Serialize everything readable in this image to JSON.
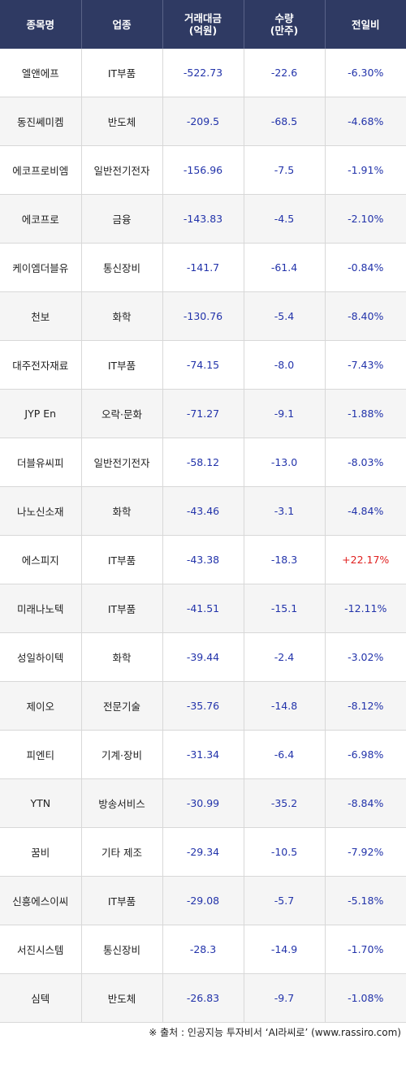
{
  "header": {
    "name": "종목명",
    "sector": "업종",
    "amount_l1": "거래대금",
    "amount_l2": "(억원)",
    "volume_l1": "수량",
    "volume_l2": "(만주)",
    "change": "전일비"
  },
  "rows": [
    {
      "name": "엘앤에프",
      "sector": "IT부품",
      "amount": "-522.73",
      "volume": "-22.6",
      "change": "-6.30%"
    },
    {
      "name": "동진쎄미켐",
      "sector": "반도체",
      "amount": "-209.5",
      "volume": "-68.5",
      "change": "-4.68%"
    },
    {
      "name": "에코프로비엠",
      "sector": "일반전기전자",
      "amount": "-156.96",
      "volume": "-7.5",
      "change": "-1.91%"
    },
    {
      "name": "에코프로",
      "sector": "금융",
      "amount": "-143.83",
      "volume": "-4.5",
      "change": "-2.10%"
    },
    {
      "name": "케이엠더블유",
      "sector": "통신장비",
      "amount": "-141.7",
      "volume": "-61.4",
      "change": "-0.84%"
    },
    {
      "name": "천보",
      "sector": "화학",
      "amount": "-130.76",
      "volume": "-5.4",
      "change": "-8.40%"
    },
    {
      "name": "대주전자재료",
      "sector": "IT부품",
      "amount": "-74.15",
      "volume": "-8.0",
      "change": "-7.43%"
    },
    {
      "name": "JYP En",
      "sector": "오락·문화",
      "amount": "-71.27",
      "volume": "-9.1",
      "change": "-1.88%"
    },
    {
      "name": "더블유씨피",
      "sector": "일반전기전자",
      "amount": "-58.12",
      "volume": "-13.0",
      "change": "-8.03%"
    },
    {
      "name": "나노신소재",
      "sector": "화학",
      "amount": "-43.46",
      "volume": "-3.1",
      "change": "-4.84%"
    },
    {
      "name": "에스피지",
      "sector": "IT부품",
      "amount": "-43.38",
      "volume": "-18.3",
      "change": "+22.17%"
    },
    {
      "name": "미래나노텍",
      "sector": "IT부품",
      "amount": "-41.51",
      "volume": "-15.1",
      "change": "-12.11%"
    },
    {
      "name": "성일하이텍",
      "sector": "화학",
      "amount": "-39.44",
      "volume": "-2.4",
      "change": "-3.02%"
    },
    {
      "name": "제이오",
      "sector": "전문기술",
      "amount": "-35.76",
      "volume": "-14.8",
      "change": "-8.12%"
    },
    {
      "name": "피엔티",
      "sector": "기계·장비",
      "amount": "-31.34",
      "volume": "-6.4",
      "change": "-6.98%"
    },
    {
      "name": "YTN",
      "sector": "방송서비스",
      "amount": "-30.99",
      "volume": "-35.2",
      "change": "-8.84%"
    },
    {
      "name": "꿈비",
      "sector": "기타 제조",
      "amount": "-29.34",
      "volume": "-10.5",
      "change": "-7.92%"
    },
    {
      "name": "신흥에스이씨",
      "sector": "IT부품",
      "amount": "-29.08",
      "volume": "-5.7",
      "change": "-5.18%"
    },
    {
      "name": "서진시스템",
      "sector": "통신장비",
      "amount": "-28.3",
      "volume": "-14.9",
      "change": "-1.70%"
    },
    {
      "name": "심텍",
      "sector": "반도체",
      "amount": "-26.83",
      "volume": "-9.7",
      "change": "-1.08%"
    }
  ],
  "footer": {
    "source": "※ 출처 : 인공지능 투자비서 ‘AI라씨로’ (www.rassiro.com)"
  },
  "colors": {
    "header_bg": "#2f3a63",
    "negative": "#2233aa",
    "positive": "#e0201f",
    "alt_row": "#f5f5f5"
  }
}
